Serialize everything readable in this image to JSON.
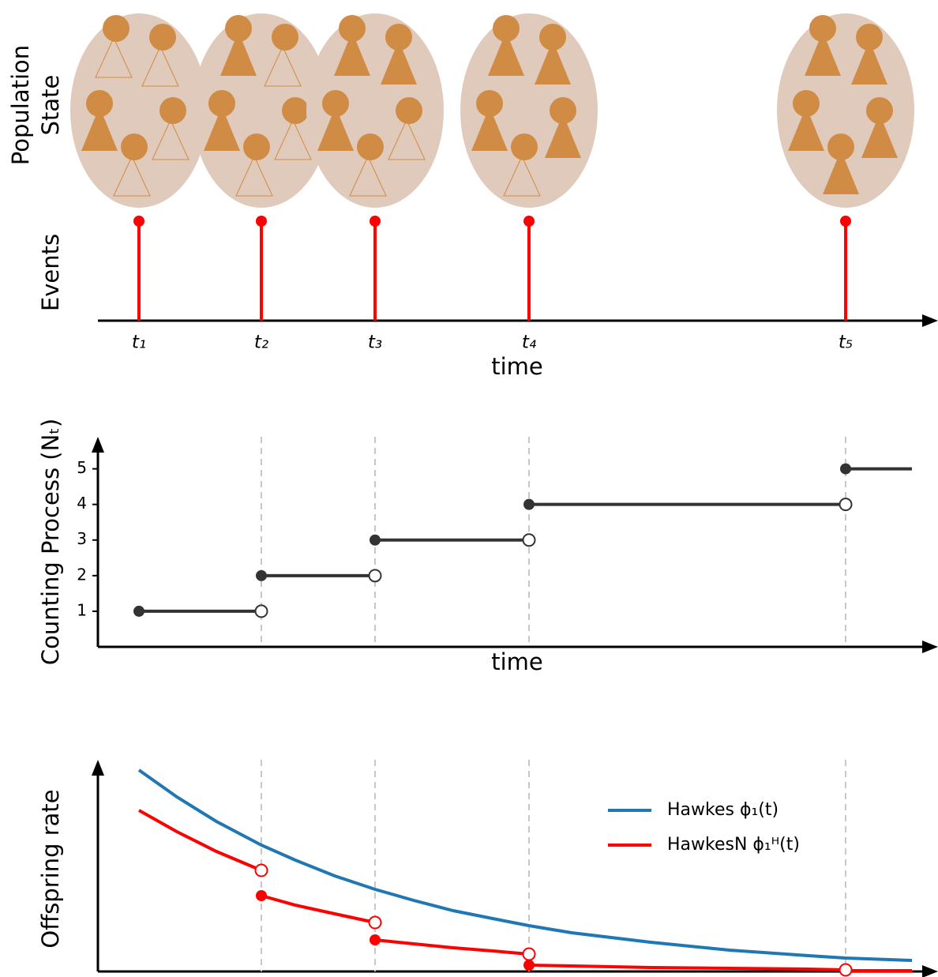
{
  "chart_data": [
    {
      "type": "events",
      "state_label": [
        "Population",
        "State"
      ],
      "ylabel": "Events",
      "xlabel": "time",
      "x": [
        0.52,
        2.07,
        3.51,
        5.46,
        9.47
      ],
      "labels": [
        "t₁",
        "t₂",
        "t₃",
        "t₄",
        "t₅"
      ],
      "color": "#ff0000",
      "state_color": "#d08c45",
      "state_fill": "#e0cabb",
      "xlim": [
        0,
        10.64
      ]
    },
    {
      "type": "step",
      "ylabel": "Counting Process (Nₜ)",
      "xlabel": "time",
      "x": [
        0.52,
        2.07,
        3.51,
        5.46,
        9.47
      ],
      "x_end": 10.31,
      "values": [
        1,
        2,
        3,
        4,
        5
      ],
      "color": "#333333",
      "xlim": [
        0,
        10.64
      ],
      "ylim": [
        0,
        5.9
      ],
      "yticks": [
        1,
        2,
        3,
        4,
        5
      ],
      "vlines": [
        2.07,
        3.51,
        5.46,
        9.47
      ]
    },
    {
      "type": "line",
      "ylabel": "Offspring rate",
      "xlim": [
        0,
        10.64
      ],
      "ylim": [
        0,
        2.68
      ],
      "vlines": [
        2.07,
        3.51,
        5.46,
        9.47
      ],
      "legend": "upper right",
      "series": [
        {
          "name": "Hawkes ϕ₁(t)",
          "color": "#1f77b4",
          "x": [
            0.52,
            1.0,
            1.5,
            2.07,
            2.5,
            3.0,
            3.51,
            4.0,
            4.5,
            5.0,
            5.46,
            6.0,
            7.0,
            8.0,
            9.0,
            9.47,
            10.31
          ],
          "values": [
            2.55,
            2.21,
            1.9,
            1.6,
            1.41,
            1.21,
            1.04,
            0.9,
            0.77,
            0.67,
            0.58,
            0.49,
            0.37,
            0.27,
            0.2,
            0.17,
            0.14
          ]
        },
        {
          "name": "HawkesN ϕ₁ᴴ(t)",
          "color": "#ff0000",
          "x": [
            0.52,
            1.0,
            1.5,
            2.07,
            null,
            2.07,
            2.5,
            3.0,
            3.51,
            null,
            3.51,
            4.0,
            4.5,
            5.0,
            5.46,
            null,
            5.46,
            6.0,
            7.0,
            8.0,
            9.0,
            9.47,
            null,
            9.47,
            10.31
          ],
          "values": [
            2.04,
            1.77,
            1.52,
            1.28,
            null,
            0.96,
            0.84,
            0.73,
            0.62,
            null,
            0.4,
            0.35,
            0.3,
            0.26,
            0.22,
            null,
            0.08,
            0.07,
            0.05,
            0.04,
            0.03,
            0.02,
            null,
            0.01,
            0.01
          ]
        }
      ]
    }
  ]
}
